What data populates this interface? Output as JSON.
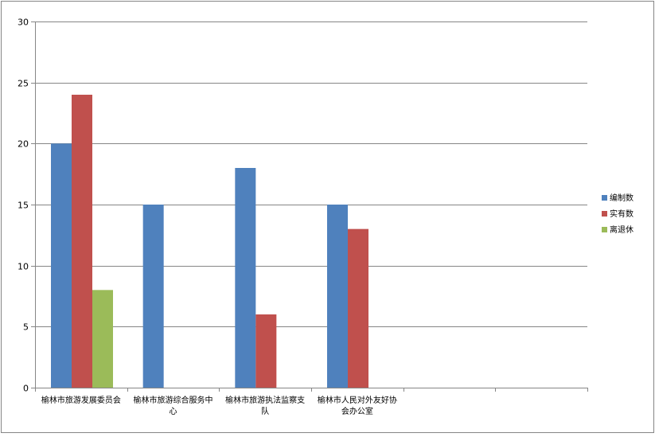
{
  "chart_data": {
    "type": "bar",
    "title": "",
    "xlabel": "",
    "ylabel": "",
    "ylim": [
      0,
      30
    ],
    "yticks": [
      0,
      5,
      10,
      15,
      20,
      25,
      30
    ],
    "grid": true,
    "legend_position": "right",
    "categories": [
      [
        "榆林市旅游发展委员会"
      ],
      [
        "榆林市旅游综合服务中",
        "心"
      ],
      [
        "榆林市旅游执法监察支",
        "队"
      ],
      [
        "榆林市人民对外友好协",
        "会办公室"
      ],
      [
        ""
      ],
      [
        ""
      ]
    ],
    "series": [
      {
        "name": "编制数",
        "color": "#4F81BD",
        "values": [
          20,
          15,
          18,
          15,
          null,
          null
        ]
      },
      {
        "name": "实有数",
        "color": "#C0504D",
        "values": [
          24,
          0,
          6,
          13,
          null,
          null
        ]
      },
      {
        "name": "离退休",
        "color": "#9BBB59",
        "values": [
          8,
          0,
          0,
          0,
          null,
          null
        ]
      }
    ]
  },
  "colors": {
    "border": "#868686",
    "gridline": "#868686",
    "axis": "#868686"
  }
}
